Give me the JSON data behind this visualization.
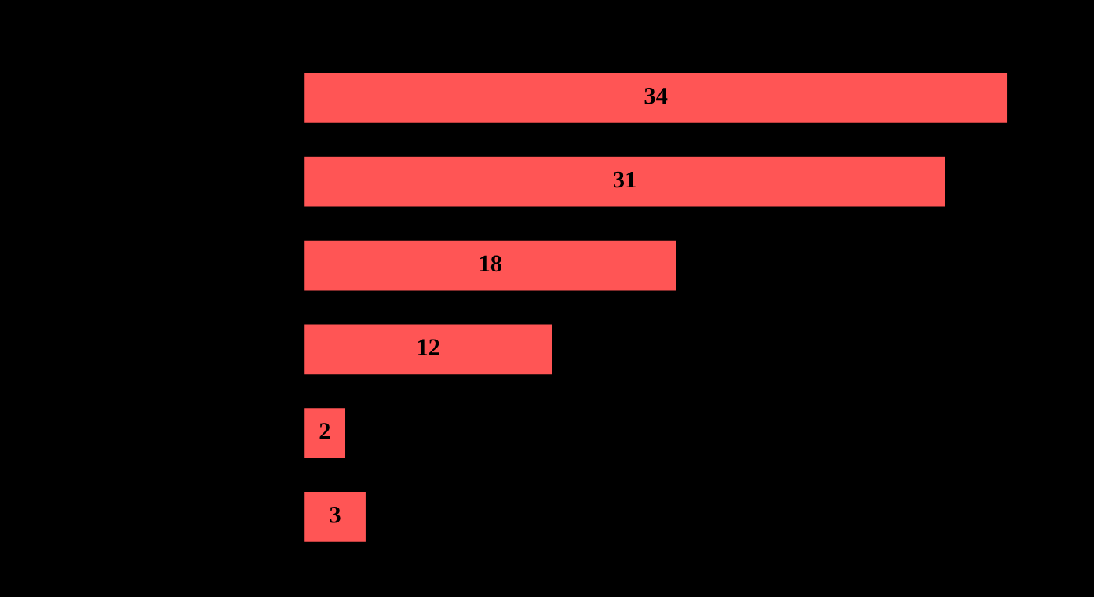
{
  "chart_data": {
    "type": "bar",
    "orientation": "horizontal",
    "categories": [
      null,
      null,
      null,
      null,
      null,
      null
    ],
    "values": [
      34,
      31,
      18,
      12,
      2,
      3
    ],
    "color": "#ff5555",
    "data_labels": true,
    "grid": false,
    "legend": false
  }
}
